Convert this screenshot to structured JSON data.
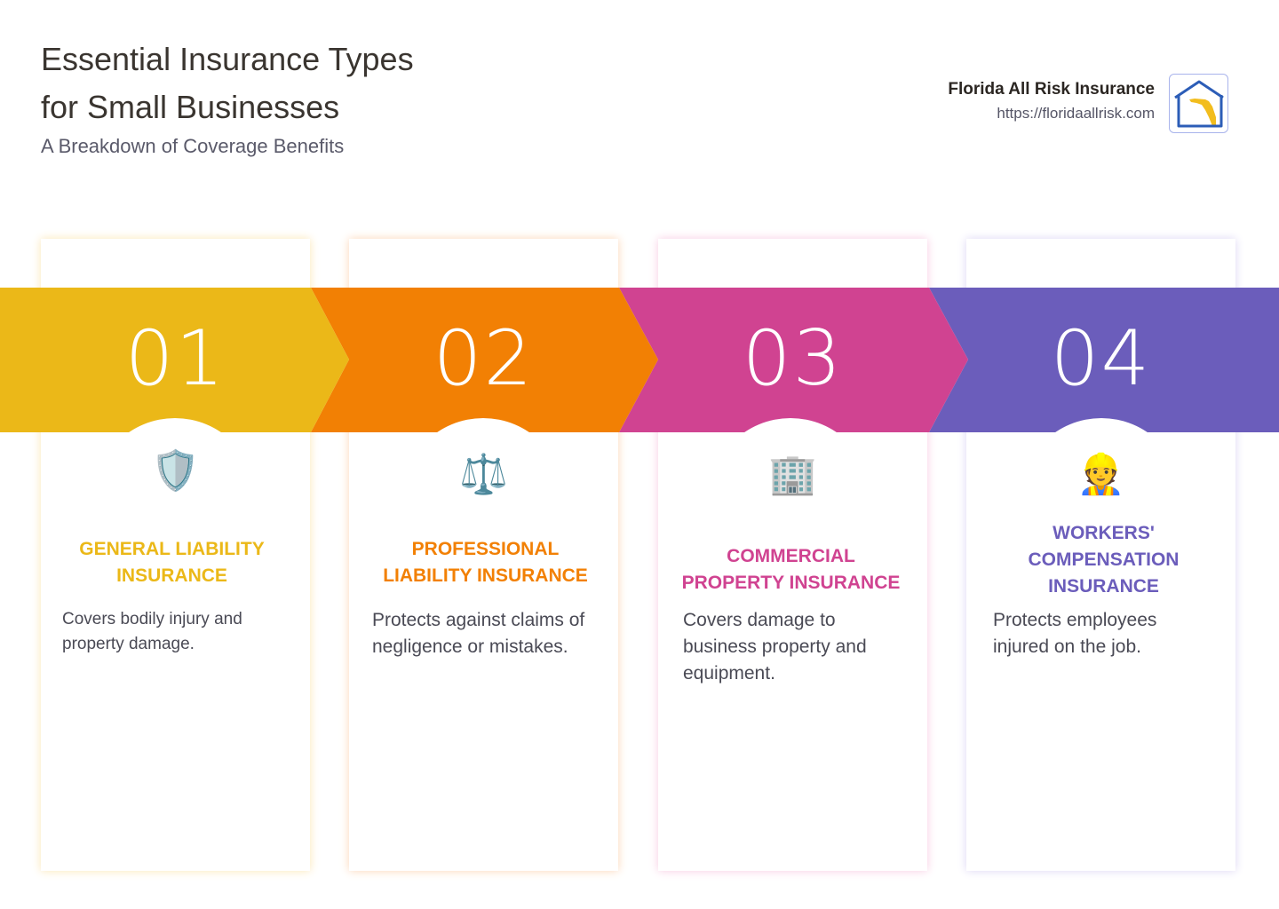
{
  "header": {
    "title_line1": "Essential Insurance Types",
    "title_line2": "for Small Businesses",
    "subtitle": "A Breakdown of Coverage Benefits"
  },
  "brand": {
    "name": "Florida All Risk Insurance",
    "url": "https://floridaallrisk.com",
    "logo_icon": "house-florida-logo"
  },
  "colors": {
    "step1": "#ebb818",
    "step2": "#f28004",
    "step3": "#d04391",
    "step4": "#6b5dbb"
  },
  "steps": [
    {
      "number": "01",
      "icon": "shield-icon",
      "glyph": "🛡️",
      "title": "GENERAL LIABILITY INSURANCE",
      "description": "Covers bodily injury and property damage."
    },
    {
      "number": "02",
      "icon": "scales-icon",
      "glyph": "⚖️",
      "title": "PROFESSIONAL LIABILITY INSURANCE",
      "description": "Protects against claims of negligence or mistakes."
    },
    {
      "number": "03",
      "icon": "office-building-icon",
      "glyph": "🏢",
      "title": "COMMERCIAL PROPERTY INSURANCE",
      "description": "Covers damage to business property and equipment."
    },
    {
      "number": "04",
      "icon": "construction-worker-icon",
      "glyph": "👷",
      "title": "WORKERS' COMPENSATION INSURANCE",
      "description": "Protects employees injured on the job."
    }
  ]
}
